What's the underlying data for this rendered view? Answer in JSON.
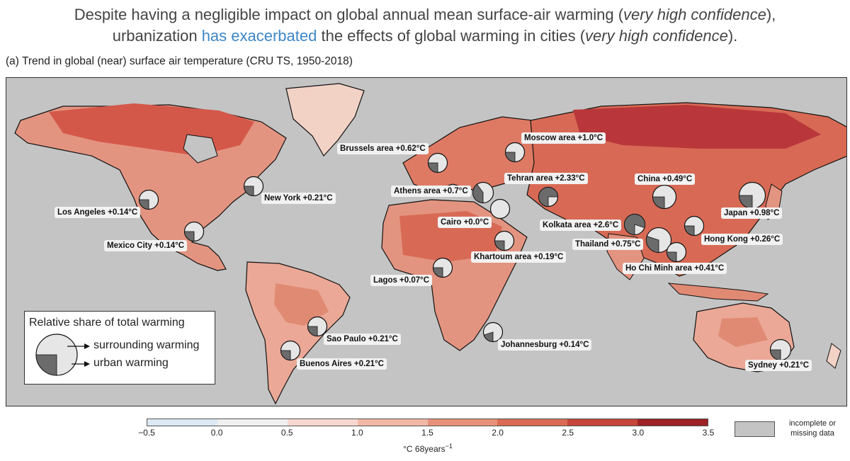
{
  "headline": {
    "line1_a": "Despite having a negligible impact on global annual mean surface-air warming (",
    "line1_b": "very high confidence",
    "line1_c": "),",
    "line2_a": "urbanization ",
    "line2_b": "has exacerbated",
    "line2_c": " the effects of global warming in cities (",
    "line2_d": "very high confidence",
    "line2_e": ")."
  },
  "panel_title": "(a) Trend in global (near) surface air temperature (CRU TS, 1950-2018)",
  "colors": {
    "ocean": "#c4c4c4",
    "pie_surrounding": "#e6e6e6",
    "pie_urban": "#6b6b6b",
    "highlight_text": "#3d86c6"
  },
  "cities": [
    {
      "name": "Los Angeles",
      "label": "Los Angeles +0.14°C",
      "urban_share": 0.25
    },
    {
      "name": "Mexico City",
      "label": "Mexico City +0.14°C",
      "urban_share": 0.25
    },
    {
      "name": "New York",
      "label": "New York +0.21°C",
      "urban_share": 0.25
    },
    {
      "name": "Brussels area",
      "label": "Brussels area +0.62°C",
      "urban_share": 0.25
    },
    {
      "name": "Athens area",
      "label": "Athens area +0.7°C",
      "urban_share": 0.4
    },
    {
      "name": "Moscow area",
      "label": "Moscow area +1.0°C",
      "urban_share": 0.25
    },
    {
      "name": "Tehran area",
      "label": "Tehran area +2.33°C",
      "urban_share": 0.75
    },
    {
      "name": "Cairo",
      "label": "Cairo +0.0°C",
      "urban_share": 0.0
    },
    {
      "name": "Khartoum area",
      "label": "Khartoum area +0.19°C",
      "urban_share": 0.25
    },
    {
      "name": "Kolkata area",
      "label": "Kolkata area +2.6°C",
      "urban_share": 0.8
    },
    {
      "name": "Lagos",
      "label": "Lagos +0.07°C",
      "urban_share": 0.25
    },
    {
      "name": "China",
      "label": "China +0.49°C",
      "urban_share": 0.25
    },
    {
      "name": "Japan",
      "label": "Japan +0.98°C",
      "urban_share": 0.25
    },
    {
      "name": "Thailand",
      "label": "Thailand +0.75°C",
      "urban_share": 0.3
    },
    {
      "name": "Hong Kong",
      "label": "Hong Kong +0.26°C",
      "urban_share": 0.25
    },
    {
      "name": "Ho Chi Minh area",
      "label": "Ho Chi Minh area +0.41°C",
      "urban_share": 0.25
    },
    {
      "name": "Sao Paulo",
      "label": "Sao Paulo +0.21°C",
      "urban_share": 0.25
    },
    {
      "name": "Buenos Aires",
      "label": "Buenos Aires +0.21°C",
      "urban_share": 0.25
    },
    {
      "name": "Johannesburg",
      "label": "Johannesburg +0.14°C",
      "urban_share": 0.2
    },
    {
      "name": "Sydney",
      "label": "Sydney +0.21°C",
      "urban_share": 0.25
    }
  ],
  "legend": {
    "title": "Relative share of total warming",
    "surrounding": "surrounding warming",
    "urban": "urban warming",
    "example_urban_share": 0.25
  },
  "colorbar": {
    "ticks": [
      "−0.5",
      "0.0",
      "0.5",
      "1.0",
      "1.5",
      "2.0",
      "2.5",
      "3.0",
      "3.5"
    ],
    "tick_values": [
      -0.5,
      0.0,
      0.5,
      1.0,
      1.5,
      2.0,
      2.5,
      3.0,
      3.5
    ],
    "colors": [
      "#dbe9f4",
      "#f0f0f0",
      "#f7d8d0",
      "#f1b8a6",
      "#e8917a",
      "#d96b55",
      "#c4453a",
      "#9c2226",
      "#6e0f1c"
    ],
    "unit": "°C 68years",
    "unit_exp": "−1",
    "missing_label_1": "incomplete or",
    "missing_label_2": "missing data"
  }
}
